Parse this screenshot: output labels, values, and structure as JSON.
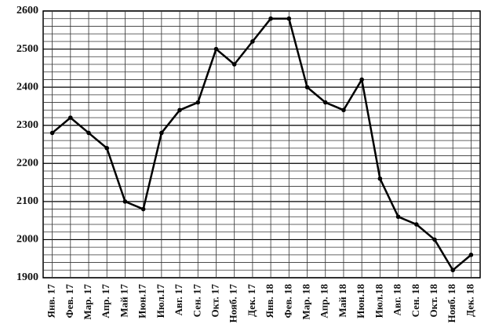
{
  "chart_data": {
    "type": "line",
    "categories": [
      "Янв. 17",
      "Фев. 17",
      "Мар. 17",
      "Апр. 17",
      "Май 17",
      "Июн.17",
      "Июл.17",
      "Авг. 17",
      "Сен. 17",
      "Окт. 17",
      "Нояб. 17",
      "Дек. 17",
      "Янв. 18",
      "Фев. 18",
      "Мар. 18",
      "Апр. 18",
      "Май 18",
      "Июн.18",
      "Июл.18",
      "Авг. 18",
      "Сен. 18",
      "Окт. 18",
      "Нояб. 18",
      "Дек. 18"
    ],
    "values": [
      2280,
      2320,
      2280,
      2240,
      2100,
      2080,
      2280,
      2340,
      2360,
      2500,
      2460,
      2520,
      2580,
      2580,
      2400,
      2360,
      2340,
      2420,
      2160,
      2060,
      2040,
      2000,
      1920,
      1960
    ],
    "color": "#000000",
    "ylim": [
      1900,
      2600
    ],
    "yticks": [
      1900,
      2000,
      2100,
      2200,
      2300,
      2400,
      2500,
      2600
    ],
    "minor_yticks": [
      1920,
      1940,
      1960,
      1980,
      2020,
      2040,
      2060,
      2080,
      2120,
      2140,
      2160,
      2180,
      2220,
      2240,
      2260,
      2280,
      2320,
      2340,
      2360,
      2380,
      2420,
      2440,
      2460,
      2480,
      2520,
      2540,
      2560,
      2580
    ],
    "grid": true
  }
}
